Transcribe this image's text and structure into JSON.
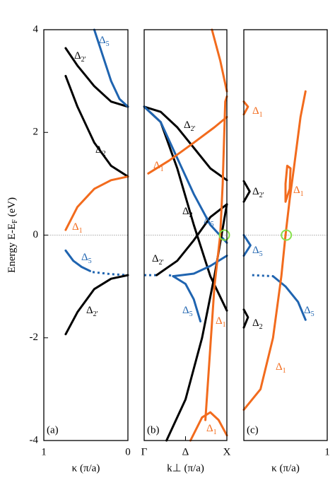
{
  "chart_data": [
    {
      "type": "line",
      "panel_label": "(a)",
      "xlabel": "κ (π/a)",
      "ylabel": [
        "Energy E-E",
        "F",
        " (eV)"
      ],
      "xlim": [
        1,
        0
      ],
      "xticks": [
        1,
        0
      ],
      "ylim": [
        -4,
        4
      ],
      "yticks": [
        4,
        2,
        0,
        -2,
        -4
      ],
      "series": [
        {
          "color": "#000000",
          "x": [
            0.74,
            0.6,
            0.4,
            0.2,
            0
          ],
          "values": [
            3.64,
            3.3,
            2.9,
            2.6,
            2.5
          ]
        },
        {
          "color": "#1f64b0",
          "x": [
            0.4,
            0.3,
            0.2,
            0.1,
            0
          ],
          "values": [
            4.0,
            3.5,
            3.0,
            2.65,
            2.5
          ]
        },
        {
          "color": "#000000",
          "x": [
            0.74,
            0.6,
            0.4,
            0.2,
            0
          ],
          "values": [
            3.1,
            2.5,
            1.8,
            1.35,
            1.14
          ]
        },
        {
          "color": "#f26b1d",
          "x": [
            0.74,
            0.6,
            0.4,
            0.2,
            0
          ],
          "values": [
            0.1,
            0.55,
            0.9,
            1.07,
            1.14
          ]
        },
        {
          "color": "#1f64b0",
          "x": [
            0.74,
            0.65,
            0.55,
            0.45
          ],
          "values": [
            -0.3,
            -0.5,
            -0.62,
            -0.7
          ]
        },
        {
          "color": "#1f64b0",
          "dashed": true,
          "x": [
            0.42,
            0.2,
            0
          ],
          "values": [
            -0.72,
            -0.76,
            -0.78
          ]
        },
        {
          "color": "#000000",
          "x": [
            0.74,
            0.6,
            0.4,
            0.2,
            0
          ],
          "values": [
            -1.93,
            -1.5,
            -1.05,
            -0.85,
            -0.78
          ]
        }
      ],
      "annotations": [
        {
          "text": "Δ",
          "sub": "5",
          "color": "#1f64b0"
        },
        {
          "text": "Δ",
          "sub": "2'",
          "color": "#000000"
        },
        {
          "text": "Δ",
          "sub": "2",
          "color": "#000000"
        },
        {
          "text": "Δ",
          "sub": "1",
          "color": "#f26b1d"
        },
        {
          "text": "Δ",
          "sub": "5",
          "color": "#1f64b0"
        },
        {
          "text": "Δ",
          "sub": "2'",
          "color": "#000000"
        }
      ]
    },
    {
      "type": "line",
      "panel_label": "(b)",
      "xlabel": "k⊥ (π/a)",
      "xlim": [
        0,
        1
      ],
      "xticks": [
        {
          "value": 0,
          "label": "Γ"
        },
        {
          "value": 0.5,
          "label": "Δ"
        },
        {
          "value": 1,
          "label": "X"
        }
      ],
      "ylim": [
        -4,
        4
      ],
      "series": [
        {
          "color": "#000000",
          "x": [
            0,
            0.2,
            0.4,
            0.6,
            0.8,
            1
          ],
          "values": [
            2.5,
            2.4,
            2.1,
            1.7,
            1.3,
            1.07
          ]
        },
        {
          "color": "#000000",
          "x": [
            0,
            0.2,
            0.4,
            0.6,
            0.8,
            1
          ],
          "values": [
            2.5,
            2.2,
            1.3,
            0.2,
            -0.8,
            -1.47
          ]
        },
        {
          "color": "#1f64b0",
          "x": [
            0,
            0.2,
            0.4,
            0.6,
            0.8,
            1
          ],
          "values": [
            2.5,
            2.2,
            1.5,
            0.8,
            0.2,
            -0.15
          ]
        },
        {
          "color": "#f26b1d",
          "x": [
            0.05,
            0.3,
            0.6,
            0.85,
            1
          ],
          "values": [
            1.2,
            1.45,
            1.8,
            2.1,
            2.3
          ]
        },
        {
          "color": "#1f64b0",
          "dashed": true,
          "x": [
            0,
            0.15
          ],
          "values": [
            -0.78,
            -0.78
          ]
        },
        {
          "color": "#000000",
          "x": [
            0.15,
            0.4,
            0.6,
            0.8,
            1
          ],
          "values": [
            -0.78,
            -0.5,
            -0.1,
            0.35,
            0.6
          ]
        },
        {
          "color": "#000000",
          "x": [
            0.27,
            0.5,
            0.7,
            0.85,
            1
          ],
          "values": [
            -4,
            -3.2,
            -2,
            -0.8,
            0.6
          ]
        },
        {
          "color": "#1f64b0",
          "dashed": true,
          "x": [
            0.3,
            0.35
          ],
          "values": [
            -0.78,
            -0.8
          ]
        },
        {
          "color": "#1f64b0",
          "x": [
            0.35,
            0.5,
            0.6,
            0.68
          ],
          "values": [
            -0.8,
            -0.95,
            -1.25,
            -1.68
          ]
        },
        {
          "color": "#1f64b0",
          "x": [
            0.35,
            0.6,
            0.8,
            1
          ],
          "values": [
            -0.8,
            -0.75,
            -0.6,
            -0.4
          ]
        },
        {
          "color": "#f26b1d",
          "x": [
            0.74,
            0.85,
            0.92,
            0.95,
            0.98,
            1
          ],
          "values": [
            -3.6,
            -1,
            0,
            1,
            2.6,
            2.7
          ]
        },
        {
          "color": "#f26b1d",
          "x": [
            1,
            0.92,
            0.82
          ],
          "values": [
            2.8,
            3.4,
            4.0
          ]
        },
        {
          "color": "#f26b1d",
          "x": [
            0.56,
            0.7,
            0.8,
            0.9,
            1
          ],
          "values": [
            -4,
            -3.55,
            -3.45,
            -3.6,
            -3.9
          ]
        }
      ],
      "markers": [
        {
          "x": 0.97,
          "y": 0,
          "color": "#86e04a"
        }
      ],
      "annotations": [
        {
          "text": "Δ",
          "sub": "2'",
          "color": "#000000"
        },
        {
          "text": "Δ",
          "sub": "1",
          "color": "#f26b1d"
        },
        {
          "text": "Δ",
          "sub": "2",
          "color": "#000000"
        },
        {
          "text": "Δ",
          "sub": "5",
          "color": "#1f64b0"
        },
        {
          "text": "Δ",
          "sub": "2'",
          "color": "#000000"
        },
        {
          "text": "Δ",
          "sub": "5",
          "color": "#1f64b0"
        },
        {
          "text": "Δ",
          "sub": "1",
          "color": "#f26b1d"
        },
        {
          "text": "Δ",
          "sub": "1",
          "color": "#f26b1d"
        }
      ]
    },
    {
      "type": "line",
      "panel_label": "(c)",
      "xlabel": "κ (π/a)",
      "xlim": [
        0,
        1
      ],
      "xticks": [
        1
      ],
      "ylim": [
        -4,
        4
      ],
      "series": [
        {
          "color": "#f26b1d",
          "x": [
            0,
            0.05,
            0
          ],
          "values": [
            2.6,
            2.5,
            2.35
          ]
        },
        {
          "color": "#000000",
          "x": [
            0,
            0.07,
            0
          ],
          "values": [
            1.05,
            0.85,
            0.65
          ]
        },
        {
          "color": "#1f64b0",
          "x": [
            0,
            0.08,
            0
          ],
          "values": [
            0.0,
            -0.2,
            -0.4
          ]
        },
        {
          "color": "#000000",
          "x": [
            0,
            0.05,
            0
          ],
          "values": [
            -1.45,
            -1.6,
            -1.8
          ]
        },
        {
          "color": "#1f64b0",
          "dashed": true,
          "x": [
            0.1,
            0.35
          ],
          "values": [
            -0.78,
            -0.8
          ]
        },
        {
          "color": "#1f64b0",
          "x": [
            0.35,
            0.5,
            0.65,
            0.74
          ],
          "values": [
            -0.8,
            -1.0,
            -1.3,
            -1.65
          ]
        },
        {
          "color": "#f26b1d",
          "x": [
            0,
            0.2,
            0.35,
            0.45,
            0.5,
            0.55,
            0.6,
            0.68,
            0.74
          ],
          "values": [
            -3.4,
            -3.0,
            -2.0,
            -0.8,
            0,
            0.7,
            1.3,
            2.3,
            2.8
          ]
        },
        {
          "color": "#f26b1d",
          "x": [
            0.5,
            0.55,
            0.56,
            0.52,
            0.5,
            0.5
          ],
          "values": [
            0.65,
            0.9,
            1.3,
            1.35,
            1.0,
            0.65
          ]
        }
      ],
      "markers": [
        {
          "x": 0.51,
          "y": 0,
          "color": "#86e04a"
        }
      ],
      "annotations": [
        {
          "text": "Δ",
          "sub": "1",
          "color": "#f26b1d"
        },
        {
          "text": "Δ",
          "sub": "2'",
          "color": "#000000"
        },
        {
          "text": "Δ",
          "sub": "5",
          "color": "#1f64b0"
        },
        {
          "text": "Δ",
          "sub": "2",
          "color": "#000000"
        },
        {
          "text": "Δ",
          "sub": "1",
          "color": "#f26b1d"
        },
        {
          "text": "Δ",
          "sub": "5",
          "color": "#1f64b0"
        },
        {
          "text": "Δ",
          "sub": "1",
          "color": "#f26b1d"
        }
      ]
    }
  ]
}
